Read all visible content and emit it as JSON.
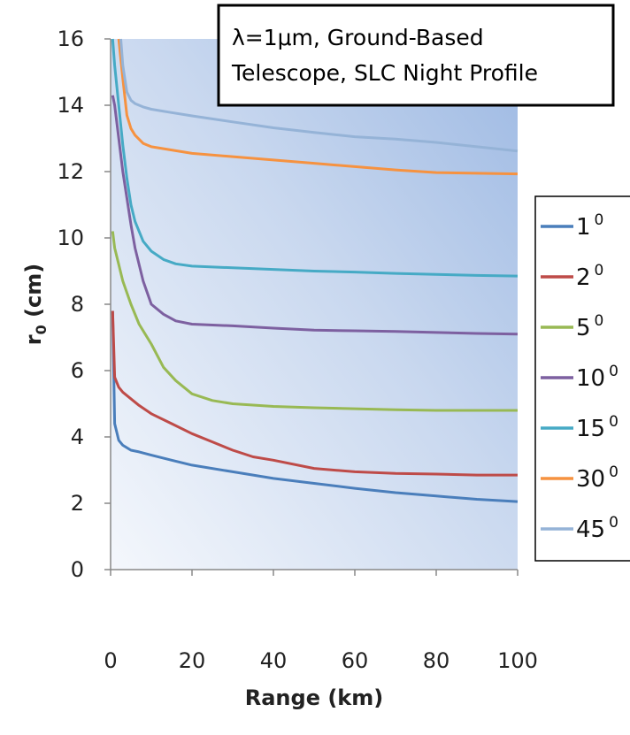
{
  "chart_data": {
    "type": "line",
    "title_lines": [
      "λ=1μm, Ground-Based",
      "Telescope, SLC Night Profile"
    ],
    "xlabel": "Range (km)",
    "ylabel_main": "r",
    "ylabel_sub": "0",
    "ylabel_unit": " (cm)",
    "xlim": [
      0,
      100
    ],
    "ylim": [
      0,
      16
    ],
    "xticks": [
      0,
      20,
      40,
      60,
      80,
      100
    ],
    "yticks": [
      0,
      2,
      4,
      6,
      8,
      10,
      12,
      14,
      16
    ],
    "grid": false,
    "legend_position": "right",
    "series": [
      {
        "name": "1",
        "sup": "0",
        "color": "#4a7ebb",
        "x": [
          0.5,
          1,
          2,
          3,
          5,
          7,
          10,
          15,
          20,
          30,
          40,
          50,
          60,
          70,
          80,
          90,
          100
        ],
        "y": [
          7.8,
          4.4,
          3.9,
          3.75,
          3.6,
          3.55,
          3.45,
          3.3,
          3.15,
          2.95,
          2.75,
          2.6,
          2.45,
          2.32,
          2.22,
          2.12,
          2.05
        ]
      },
      {
        "name": "2",
        "sup": "0",
        "color": "#be4b48",
        "x": [
          0.5,
          1,
          2,
          3,
          5,
          7,
          10,
          15,
          20,
          25,
          30,
          35,
          40,
          50,
          60,
          70,
          80,
          90,
          100
        ],
        "y": [
          7.8,
          5.8,
          5.5,
          5.35,
          5.15,
          4.95,
          4.7,
          4.4,
          4.1,
          3.85,
          3.6,
          3.4,
          3.3,
          3.05,
          2.95,
          2.9,
          2.88,
          2.85,
          2.85
        ]
      },
      {
        "name": "5",
        "sup": "0",
        "color": "#98b954",
        "x": [
          0.5,
          1,
          2,
          3,
          5,
          7,
          10,
          13,
          16,
          20,
          25,
          30,
          40,
          50,
          60,
          70,
          80,
          90,
          100
        ],
        "y": [
          10.2,
          9.7,
          9.2,
          8.7,
          8.0,
          7.4,
          6.8,
          6.1,
          5.7,
          5.3,
          5.1,
          5.0,
          4.92,
          4.88,
          4.85,
          4.82,
          4.8,
          4.8,
          4.8
        ]
      },
      {
        "name": "10",
        "sup": "0",
        "color": "#7d60a0",
        "x": [
          0.5,
          1,
          2,
          3,
          4,
          5,
          6,
          8,
          10,
          13,
          16,
          20,
          30,
          40,
          50,
          60,
          70,
          80,
          90,
          100
        ],
        "y": [
          14.3,
          14.0,
          13.0,
          12.0,
          11.2,
          10.4,
          9.7,
          8.7,
          8.0,
          7.7,
          7.5,
          7.4,
          7.35,
          7.28,
          7.22,
          7.2,
          7.18,
          7.15,
          7.12,
          7.1
        ]
      },
      {
        "name": "15",
        "sup": "0",
        "color": "#46aac5",
        "x": [
          0.5,
          1,
          2,
          3,
          4,
          5,
          6,
          8,
          10,
          13,
          16,
          20,
          30,
          40,
          50,
          60,
          70,
          80,
          90,
          100
        ],
        "y": [
          16.0,
          15.2,
          14.0,
          12.8,
          11.8,
          11.0,
          10.5,
          9.9,
          9.6,
          9.35,
          9.22,
          9.15,
          9.1,
          9.05,
          9.0,
          8.97,
          8.93,
          8.9,
          8.87,
          8.85
        ]
      },
      {
        "name": "30",
        "sup": "0",
        "color": "#f69240",
        "x": [
          2,
          3,
          4,
          5,
          6,
          8,
          10,
          15,
          20,
          30,
          40,
          50,
          60,
          70,
          80,
          90,
          100
        ],
        "y": [
          16.0,
          14.8,
          13.7,
          13.3,
          13.1,
          12.85,
          12.75,
          12.65,
          12.55,
          12.45,
          12.35,
          12.25,
          12.15,
          12.05,
          11.97,
          11.95,
          11.93
        ]
      },
      {
        "name": "45",
        "sup": "0",
        "color": "#95b3d7",
        "x": [
          2.5,
          3,
          4,
          5,
          6,
          8,
          10,
          15,
          20,
          30,
          40,
          50,
          60,
          70,
          80,
          90,
          100
        ],
        "y": [
          16.0,
          15.2,
          14.4,
          14.15,
          14.05,
          13.95,
          13.88,
          13.78,
          13.68,
          13.5,
          13.32,
          13.18,
          13.05,
          12.98,
          12.88,
          12.75,
          12.62
        ]
      }
    ]
  }
}
